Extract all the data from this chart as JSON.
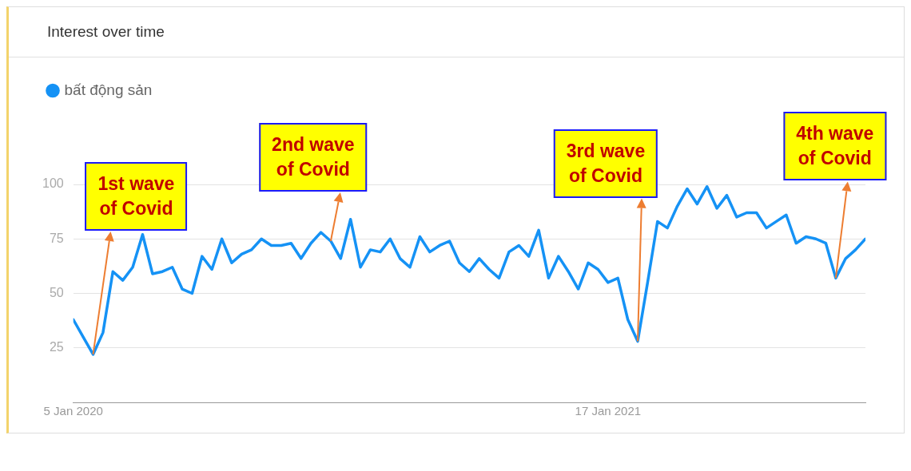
{
  "chart_data": {
    "type": "line",
    "title": "Interest over time",
    "x": [
      "2020-01-05",
      "2020-01-12",
      "2020-01-19",
      "2020-01-26",
      "2020-02-02",
      "2020-02-09",
      "2020-02-16",
      "2020-02-23",
      "2020-03-01",
      "2020-03-08",
      "2020-03-15",
      "2020-03-22",
      "2020-03-29",
      "2020-04-05",
      "2020-04-12",
      "2020-04-19",
      "2020-04-26",
      "2020-05-03",
      "2020-05-10",
      "2020-05-17",
      "2020-05-24",
      "2020-05-31",
      "2020-06-07",
      "2020-06-14",
      "2020-06-21",
      "2020-06-28",
      "2020-07-05",
      "2020-07-12",
      "2020-07-19",
      "2020-07-26",
      "2020-08-02",
      "2020-08-09",
      "2020-08-16",
      "2020-08-23",
      "2020-08-30",
      "2020-09-06",
      "2020-09-13",
      "2020-09-20",
      "2020-09-27",
      "2020-10-04",
      "2020-10-11",
      "2020-10-18",
      "2020-10-25",
      "2020-11-01",
      "2020-11-08",
      "2020-11-15",
      "2020-11-22",
      "2020-11-29",
      "2020-12-06",
      "2020-12-13",
      "2020-12-20",
      "2020-12-27",
      "2021-01-03",
      "2021-01-10",
      "2021-01-17",
      "2021-01-24",
      "2021-01-31",
      "2021-02-07",
      "2021-02-14",
      "2021-02-21",
      "2021-02-28",
      "2021-03-07",
      "2021-03-14",
      "2021-03-21",
      "2021-03-28",
      "2021-04-04",
      "2021-04-11",
      "2021-04-18",
      "2021-04-25",
      "2021-05-02",
      "2021-05-09",
      "2021-05-16",
      "2021-05-23",
      "2021-05-30",
      "2021-06-06",
      "2021-06-13",
      "2021-06-20",
      "2021-06-27",
      "2021-07-04",
      "2021-07-11",
      "2021-07-18"
    ],
    "series": [
      {
        "name": "bất động sản",
        "color": "#1592f5",
        "values": [
          38,
          30,
          22,
          32,
          60,
          56,
          62,
          77,
          59,
          60,
          62,
          52,
          50,
          67,
          61,
          75,
          64,
          68,
          70,
          75,
          72,
          72,
          73,
          66,
          73,
          78,
          74,
          66,
          84,
          62,
          70,
          69,
          75,
          66,
          62,
          76,
          69,
          72,
          74,
          64,
          60,
          66,
          61,
          57,
          69,
          72,
          67,
          79,
          57,
          67,
          60,
          52,
          64,
          61,
          55,
          57,
          38,
          28,
          55,
          83,
          80,
          90,
          98,
          91,
          99,
          89,
          95,
          85,
          87,
          87,
          80,
          83,
          86,
          73,
          76,
          75,
          73,
          57,
          66,
          70,
          75
        ]
      }
    ],
    "xlim": [
      "2020-01-05",
      "2021-07-18"
    ],
    "xticks": [
      {
        "value": "2020-01-05",
        "label": "5 Jan 2020"
      },
      {
        "value": "2021-01-17",
        "label": "17 Jan 2021"
      }
    ],
    "ylim": [
      0,
      100
    ],
    "yticks": [
      25,
      50,
      75,
      100
    ],
    "grid": "y",
    "legend": "top left",
    "marker": "none",
    "line_style": "solid",
    "annotations": [
      {
        "text": "1st wave of Covid",
        "x": "2020-01-19",
        "y": 22
      },
      {
        "text": "2nd wave of Covid",
        "x": "2020-07-05",
        "y": 74
      },
      {
        "text": "3rd wave of Covid",
        "x": "2021-02-07",
        "y": 28
      },
      {
        "text": "4th wave of Covid",
        "x": "2021-06-27",
        "y": 57
      }
    ]
  }
}
